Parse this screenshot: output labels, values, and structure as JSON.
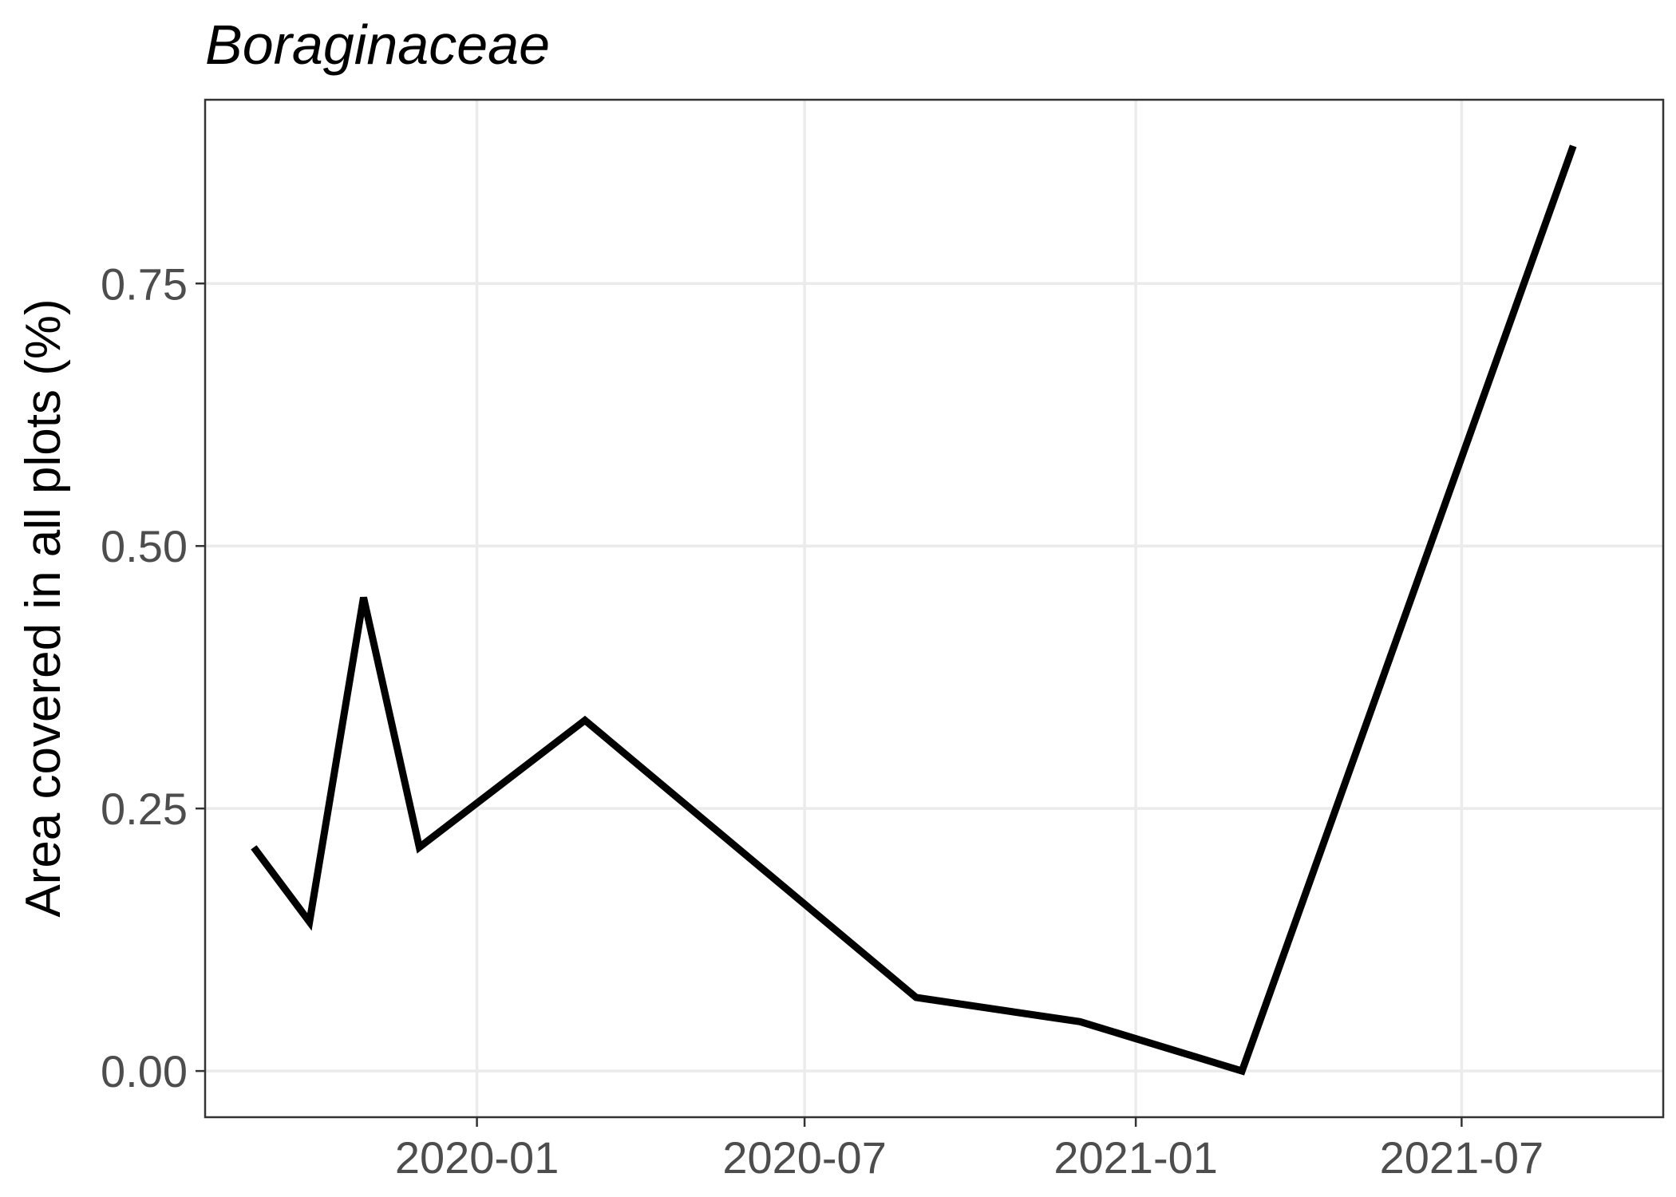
{
  "chart_data": {
    "type": "line",
    "title": "Boraginaceae",
    "xlabel": "",
    "ylabel": "Area covered in all plots (%)",
    "x_ticks": [
      "2020-01",
      "2020-07",
      "2021-01",
      "2021-07"
    ],
    "y_ticks": [
      "0.00",
      "0.25",
      "0.50",
      "0.75"
    ],
    "xlim": [
      "2019-08-03",
      "2021-10-21"
    ],
    "ylim": [
      -0.044,
      0.925
    ],
    "grid": true,
    "series": [
      {
        "color": "#000000",
        "x": [
          "2019-08-30",
          "2019-09-30",
          "2019-10-30",
          "2019-11-30",
          "2020-03-01",
          "2020-09-01",
          "2020-12-01",
          "2021-03-01",
          "2021-09-01"
        ],
        "y": [
          0.213,
          0.142,
          0.451,
          0.213,
          0.334,
          0.07,
          0.047,
          0.0,
          0.881
        ]
      }
    ]
  }
}
